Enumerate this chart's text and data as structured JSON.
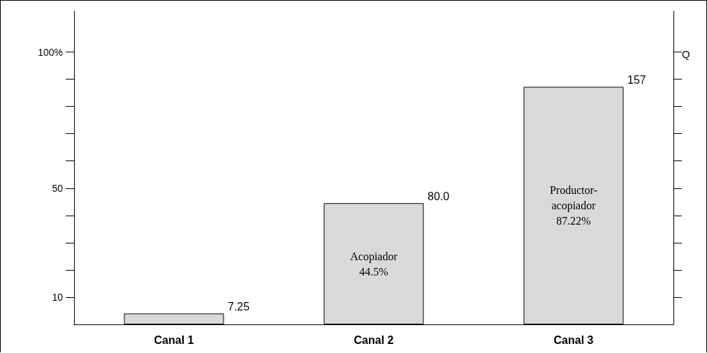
{
  "chart_data": {
    "type": "bar",
    "categories": [
      "Canal 1",
      "Canal 2",
      "Canal 3"
    ],
    "values": [
      4,
      44.5,
      87.22
    ],
    "color": "#d9d9d9",
    "ylim": [
      0,
      115
    ],
    "yticks": [
      {
        "value": 10,
        "label": "10"
      },
      {
        "value": 20,
        "label": null
      },
      {
        "value": 30,
        "label": null
      },
      {
        "value": 40,
        "label": null
      },
      {
        "value": 50,
        "label": "50"
      },
      {
        "value": 60,
        "label": null
      },
      {
        "value": 70,
        "label": null
      },
      {
        "value": 80,
        "label": null
      },
      {
        "value": 90,
        "label": null
      },
      {
        "value": 100,
        "label": "100%"
      }
    ],
    "y2label": "Q",
    "annotations": [
      "7.25",
      "80.0",
      "157",
      "Acopiador\n44.5%",
      "Productor-\nacopiador\n87.22%"
    ],
    "grid": false
  }
}
